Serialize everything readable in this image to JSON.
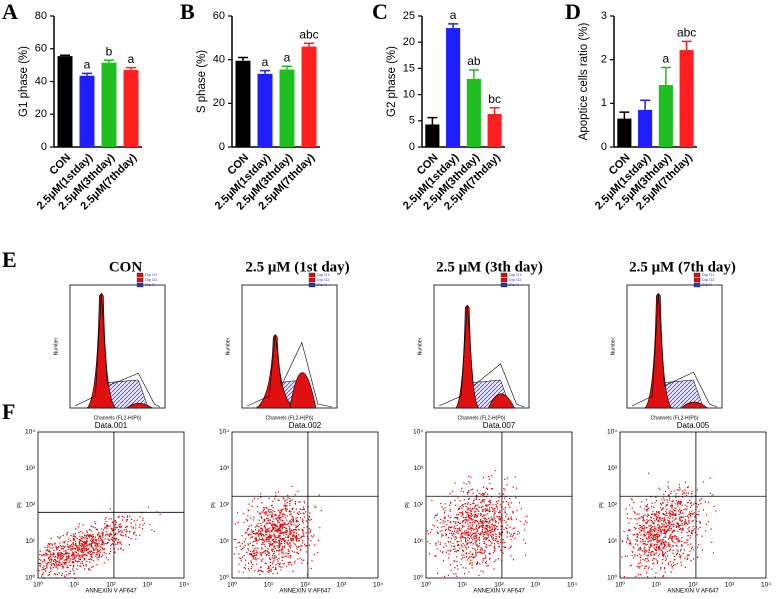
{
  "panel_labels": [
    "A",
    "B",
    "C",
    "D",
    "E",
    "F"
  ],
  "chart_data": [
    {
      "type": "bar",
      "ylabel": "G1 phase (%)",
      "categories": [
        "CON",
        "2.5μM(1stday)",
        "2.5μM(3thday)",
        "2.5μM(7thday)"
      ],
      "colors": [
        "#000000",
        "#1f1fff",
        "#1fbf1f",
        "#ff1f1f"
      ],
      "values": [
        55.5,
        43.5,
        51.5,
        47
      ],
      "errors": [
        0.5,
        1.5,
        1.5,
        1.5
      ],
      "annotations": [
        null,
        "a",
        "b",
        "a"
      ],
      "ylim": [
        0,
        80
      ],
      "yticks": [
        0,
        20,
        40,
        60,
        80
      ]
    },
    {
      "type": "bar",
      "ylabel": "S phase (%)",
      "categories": [
        "CON",
        "2.5μM(1stday)",
        "2.5μM(3thday)",
        "2.5μM(7thday)"
      ],
      "colors": [
        "#000000",
        "#1f1fff",
        "#1fbf1f",
        "#ff1f1f"
      ],
      "values": [
        39.5,
        33.5,
        35.5,
        46
      ],
      "errors": [
        1.5,
        1.5,
        1.5,
        1.5
      ],
      "annotations": [
        null,
        "a",
        "a",
        "abc"
      ],
      "ylim": [
        0,
        60
      ],
      "yticks": [
        0,
        20,
        40,
        60
      ]
    },
    {
      "type": "bar",
      "ylabel": "G2 phase (%)",
      "categories": [
        "CON",
        "2.5μM(1stday)",
        "2.5μM(3thday)",
        "2.5μM(7thday)"
      ],
      "colors": [
        "#000000",
        "#1f1fff",
        "#1fbf1f",
        "#ff1f1f"
      ],
      "values": [
        4.3,
        22.7,
        13,
        6.3
      ],
      "errors": [
        1.3,
        0.8,
        1.7,
        1.2
      ],
      "annotations": [
        null,
        "a",
        "ab",
        "bc"
      ],
      "ylim": [
        0,
        25
      ],
      "yticks": [
        0,
        5,
        10,
        15,
        20,
        25
      ]
    },
    {
      "type": "bar",
      "ylabel": "Apoptice cells ratio (%)",
      "categories": [
        "CON",
        "2.5μM(1stday)",
        "2.5μM(3thday)",
        "2.5μM(7thday)"
      ],
      "colors": [
        "#000000",
        "#1f1fff",
        "#1fbf1f",
        "#ff1f1f"
      ],
      "values": [
        0.65,
        0.85,
        1.42,
        2.22
      ],
      "errors": [
        0.15,
        0.22,
        0.4,
        0.2
      ],
      "annotations": [
        null,
        null,
        "a",
        "abc"
      ],
      "ylim": [
        0,
        3
      ],
      "yticks": [
        0,
        1,
        2,
        3
      ]
    }
  ],
  "histograms": {
    "titles": [
      "CON",
      "2.5 μM (1st day)",
      "2.5 μM (3th day)",
      "2.5 μM (7th day)"
    ],
    "ylabel": "Number",
    "xlabel": "Channels (FL2-H(PI))",
    "legend": [
      "Dip G1",
      "Dip G2",
      "Dip S"
    ]
  },
  "dotplots": {
    "titles": [
      "Data.001",
      "Data.002",
      "Data.007",
      "Data.005"
    ],
    "ylabel": "PI",
    "xlabel": "ANNEXIN V AF647",
    "ticks": [
      "10⁰",
      "10¹",
      "10²",
      "10³",
      "10⁴"
    ]
  }
}
